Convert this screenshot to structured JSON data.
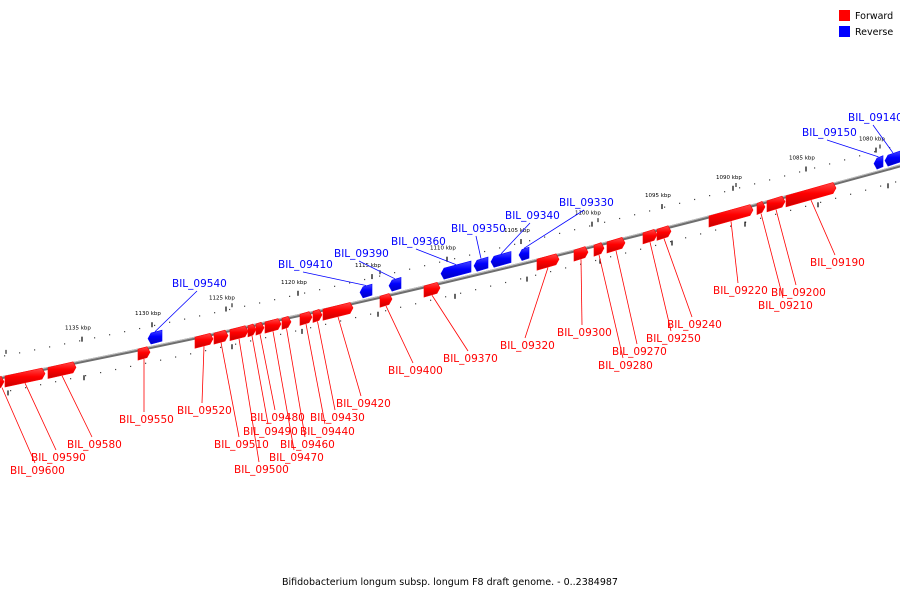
{
  "legend": {
    "forward_label": "Forward",
    "reverse_label": "Reverse",
    "forward_color": "#ff0000",
    "reverse_color": "#0000ff"
  },
  "caption": "Bifidobacterium longum subsp. longum F8 draft genome. - 0..2384987",
  "ticks": [
    "1135 kbp",
    "1130 kbp",
    "1125 kbp",
    "1120 kbp",
    "1115 kbp",
    "1110 kbp",
    "1105 kbp",
    "1100 kbp",
    "1095 kbp",
    "1090 kbp",
    "1085 kbp",
    "1080 kbp"
  ],
  "genes": [
    {
      "name": "BIL_09140",
      "strand": "reverse"
    },
    {
      "name": "BIL_09150",
      "strand": "reverse"
    },
    {
      "name": "BIL_09190",
      "strand": "forward"
    },
    {
      "name": "BIL_09200",
      "strand": "forward"
    },
    {
      "name": "BIL_09210",
      "strand": "forward"
    },
    {
      "name": "BIL_09220",
      "strand": "forward"
    },
    {
      "name": "BIL_09240",
      "strand": "forward"
    },
    {
      "name": "BIL_09250",
      "strand": "forward"
    },
    {
      "name": "BIL_09270",
      "strand": "forward"
    },
    {
      "name": "BIL_09280",
      "strand": "forward"
    },
    {
      "name": "BIL_09300",
      "strand": "forward"
    },
    {
      "name": "BIL_09320",
      "strand": "forward"
    },
    {
      "name": "BIL_09330",
      "strand": "reverse"
    },
    {
      "name": "BIL_09340",
      "strand": "reverse"
    },
    {
      "name": "BIL_09350",
      "strand": "reverse"
    },
    {
      "name": "BIL_09360",
      "strand": "reverse"
    },
    {
      "name": "BIL_09370",
      "strand": "forward"
    },
    {
      "name": "BIL_09390",
      "strand": "reverse"
    },
    {
      "name": "BIL_09400",
      "strand": "forward"
    },
    {
      "name": "BIL_09410",
      "strand": "reverse"
    },
    {
      "name": "BIL_09420",
      "strand": "forward"
    },
    {
      "name": "BIL_09430",
      "strand": "forward"
    },
    {
      "name": "BIL_09440",
      "strand": "forward"
    },
    {
      "name": "BIL_09460",
      "strand": "forward"
    },
    {
      "name": "BIL_09470",
      "strand": "forward"
    },
    {
      "name": "BIL_09480",
      "strand": "forward"
    },
    {
      "name": "BIL_09490",
      "strand": "forward"
    },
    {
      "name": "BIL_09500",
      "strand": "forward"
    },
    {
      "name": "BIL_09510",
      "strand": "forward"
    },
    {
      "name": "BIL_09520",
      "strand": "forward"
    },
    {
      "name": "BIL_09540",
      "strand": "reverse"
    },
    {
      "name": "BIL_09550",
      "strand": "forward"
    },
    {
      "name": "BIL_09580",
      "strand": "forward"
    },
    {
      "name": "BIL_09590",
      "strand": "forward"
    },
    {
      "name": "BIL_09600",
      "strand": "forward"
    }
  ]
}
